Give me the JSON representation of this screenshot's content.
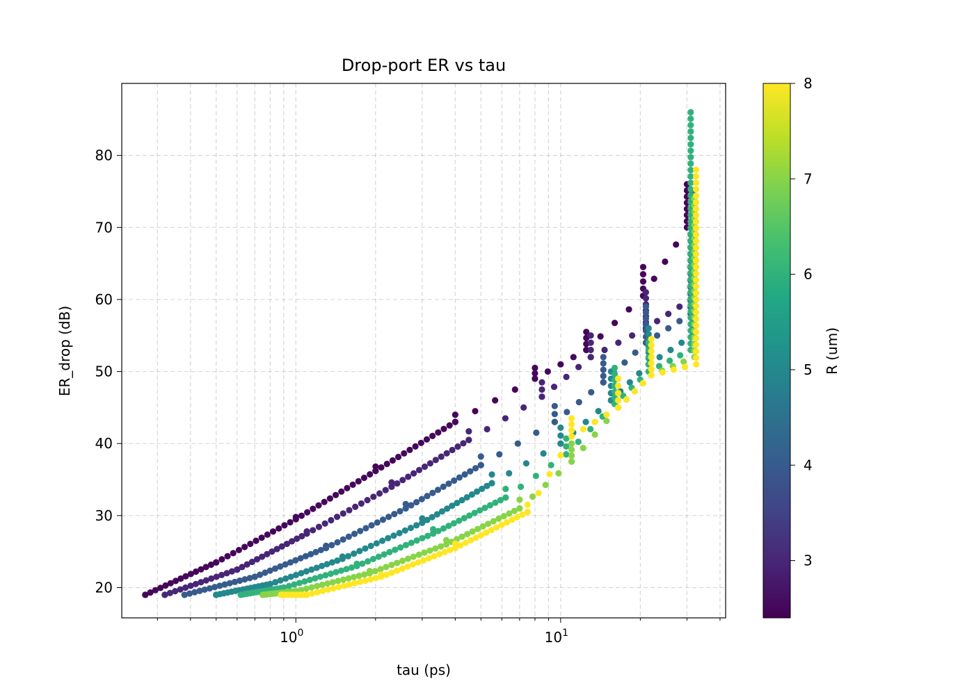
{
  "chart_data": {
    "type": "scatter",
    "title": "Drop-port ER vs tau",
    "xlabel": "tau (ps)",
    "ylabel": "ER_drop (dB)",
    "xscale": "log",
    "xlim": [
      0.22,
      42
    ],
    "ylim": [
      15.8,
      90
    ],
    "x_ticks": [
      {
        "value": 1,
        "label": "10",
        "exp": "0"
      },
      {
        "value": 10,
        "label": "10",
        "exp": "1"
      }
    ],
    "y_ticks": [
      20,
      30,
      40,
      50,
      60,
      70,
      80
    ],
    "grid": true,
    "colorbar": {
      "label": "R (um)",
      "range": [
        2.4,
        8.0
      ],
      "ticks": [
        3,
        4,
        5,
        6,
        7,
        8
      ],
      "colormap": "viridis",
      "colors": [
        "#440154",
        "#482475",
        "#414487",
        "#355f8d",
        "#2a788e",
        "#21918c",
        "#22a884",
        "#44bf70",
        "#7ad151",
        "#bddf26",
        "#fde725"
      ]
    },
    "series": [
      {
        "R": 2.5,
        "x": [
          0.27,
          0.5,
          1.0,
          2.0,
          4.0,
          8.0,
          12.5,
          20.5,
          30.0
        ],
        "y_min": [
          19,
          23.5,
          29.5,
          36.2,
          43.0,
          49.0,
          53.0,
          60.5,
          70.0
        ],
        "y_spread": [
          0,
          0,
          0.3,
          0.6,
          1.0,
          1.5,
          2.5,
          4.0,
          6.0
        ]
      },
      {
        "R": 3.0,
        "x": [
          0.32,
          0.6,
          1.1,
          2.3,
          4.5,
          8.5,
          13.0,
          21.0,
          31.0
        ],
        "y_min": [
          19,
          22.5,
          27.5,
          34.0,
          40.5,
          46.5,
          52.0,
          56.0,
          60.0
        ],
        "y_spread": [
          0,
          0,
          0.3,
          0.6,
          1.2,
          2.0,
          3.0,
          5.0,
          9.0
        ]
      },
      {
        "R": 4.0,
        "x": [
          0.38,
          0.7,
          1.3,
          2.6,
          5.0,
          9.5,
          14.5,
          21.0,
          31.0
        ],
        "y_min": [
          19,
          21.5,
          25.5,
          31.0,
          37.0,
          43.0,
          48.5,
          54.0,
          58.0
        ],
        "y_spread": [
          0,
          0,
          0.3,
          0.6,
          1.2,
          2.2,
          3.5,
          5.0,
          12.0
        ]
      },
      {
        "R": 5.0,
        "x": [
          0.5,
          0.8,
          1.5,
          3.0,
          5.5,
          10.0,
          15.5,
          21.5,
          31.5
        ],
        "y_min": [
          19,
          20.5,
          24.0,
          29.0,
          34.5,
          40.0,
          46.0,
          51.0,
          55.0
        ],
        "y_spread": [
          0,
          0,
          0.3,
          0.6,
          1.2,
          2.2,
          4.0,
          5.0,
          20.0
        ]
      },
      {
        "R": 6.0,
        "x": [
          0.62,
          0.9,
          1.7,
          3.3,
          6.2,
          10.5,
          16.0,
          21.5,
          31.0
        ],
        "y_min": [
          19,
          20.0,
          23.0,
          27.5,
          32.5,
          38.5,
          45.5,
          50.0,
          53.0
        ],
        "y_spread": [
          0,
          0,
          0.3,
          0.6,
          1.2,
          2.2,
          5.0,
          4.0,
          33.0
        ]
      },
      {
        "R": 7.0,
        "x": [
          0.75,
          1.0,
          1.9,
          3.7,
          7.0,
          11.0,
          16.5,
          22.0,
          32.0
        ],
        "y_min": [
          19,
          19.5,
          22.0,
          26.0,
          31.0,
          37.5,
          45.0,
          49.5,
          52.0
        ],
        "y_spread": [
          0,
          0,
          0.3,
          0.6,
          1.2,
          2.5,
          4.0,
          5.0,
          22.0
        ]
      },
      {
        "R": 8.0,
        "x": [
          0.88,
          1.1,
          2.1,
          4.0,
          7.5,
          11.0,
          16.5,
          22.0,
          32.5
        ],
        "y_min": [
          19,
          19.0,
          21.5,
          25.5,
          30.5,
          41.0,
          45.0,
          49.5,
          51.0
        ],
        "y_spread": [
          0,
          0,
          0.3,
          0.6,
          1.0,
          2.5,
          4.0,
          5.0,
          27.0
        ]
      }
    ]
  }
}
